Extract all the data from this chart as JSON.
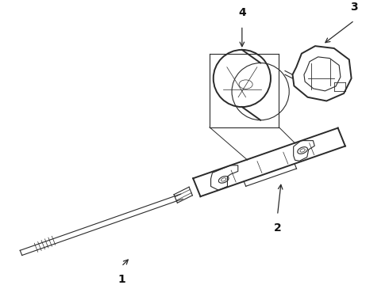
{
  "background_color": "#ffffff",
  "line_color": "#2a2a2a",
  "label_color": "#111111",
  "fig_width": 4.9,
  "fig_height": 3.6,
  "dpi": 100,
  "label_fontsize": 10,
  "lw_main": 1.4,
  "lw_thin": 0.8,
  "lw_detail": 0.6
}
